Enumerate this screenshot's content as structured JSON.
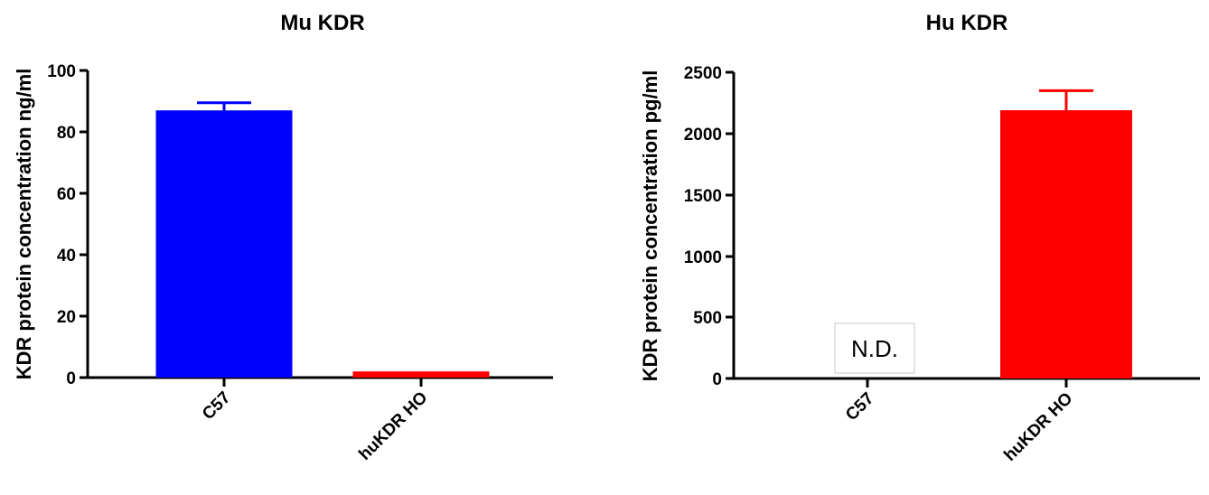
{
  "colors": {
    "c57": "#0000ff",
    "huKDR": "#ff0000",
    "axis": "#000000"
  },
  "chart_data": [
    {
      "type": "bar",
      "title": "Mu KDR",
      "xlabel": "",
      "ylabel": "KDR protein concentration ng/ml",
      "categories": [
        "C57",
        "huKDR HO"
      ],
      "values": [
        87,
        2
      ],
      "error": [
        2.5,
        0
      ],
      "ylim": [
        0,
        100
      ],
      "yticks": [
        "0",
        "20",
        "40",
        "60",
        "80",
        "100"
      ],
      "grid": false
    },
    {
      "type": "bar",
      "title": "Hu KDR",
      "xlabel": "",
      "ylabel": "KDR protein concentration pg/ml",
      "categories": [
        "C57",
        "huKDR HO"
      ],
      "values": [
        0,
        2190
      ],
      "error": [
        0,
        160
      ],
      "ylim": [
        0,
        2500
      ],
      "yticks": [
        "0",
        "500",
        "1000",
        "1500",
        "2000",
        "2500"
      ],
      "annotations": [
        "N.D."
      ],
      "grid": false
    }
  ]
}
